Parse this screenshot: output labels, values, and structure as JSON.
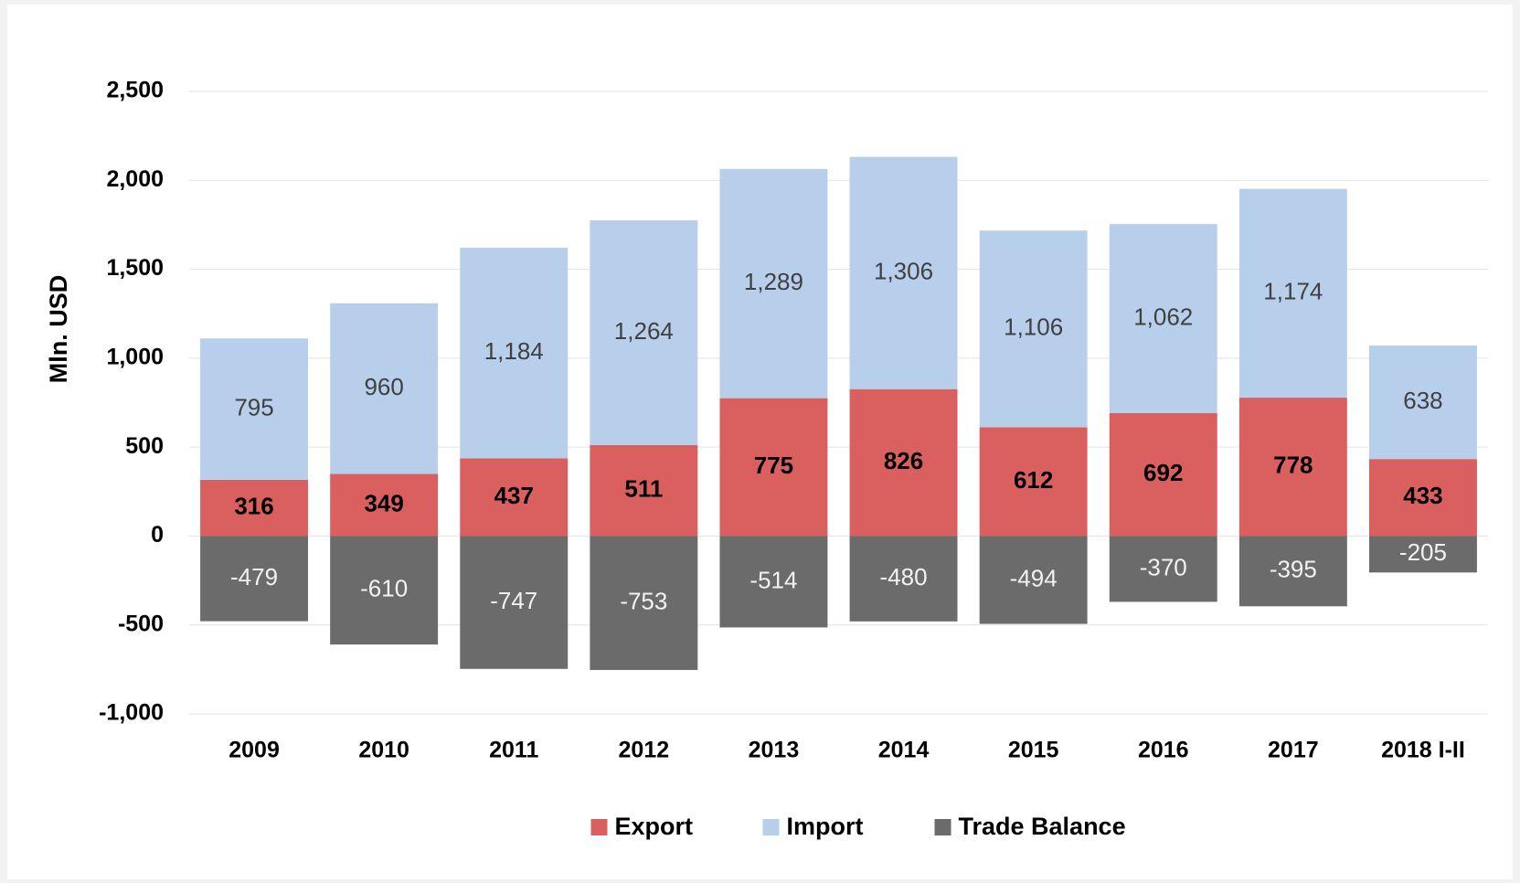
{
  "chart_data": {
    "type": "stacked_bar",
    "y_axis_label": "Mln. USD",
    "categories": [
      "2009",
      "2010",
      "2011",
      "2012",
      "2013",
      "2014",
      "2015",
      "2016",
      "2017",
      "2018 I-II"
    ],
    "series": [
      {
        "name": "Export",
        "color": "#d9605f",
        "values": [
          316,
          349,
          437,
          511,
          775,
          826,
          612,
          692,
          778,
          433
        ]
      },
      {
        "name": "Import",
        "color": "#b8cfeb",
        "values": [
          795,
          960,
          1184,
          1264,
          1289,
          1306,
          1106,
          1062,
          1174,
          638
        ],
        "value_labels": [
          "795",
          "960",
          "1,184",
          "1,264",
          "1,289",
          "1,306",
          "1,106",
          "1,062",
          "1,174",
          "638"
        ]
      },
      {
        "name": "Trade Balance",
        "color": "#6b6b6b",
        "values": [
          -479,
          -610,
          -747,
          -753,
          -514,
          -480,
          -494,
          -370,
          -395,
          -205
        ]
      }
    ],
    "ylim": [
      -1000,
      2500
    ],
    "yticks": [
      {
        "value": -1000,
        "label": "-1,000"
      },
      -500,
      0,
      500,
      {
        "value": 1000,
        "label": "1,000"
      },
      {
        "value": 1500,
        "label": "1,500"
      },
      {
        "value": 2000,
        "label": "2,000"
      },
      {
        "value": 2500,
        "label": "2,500"
      }
    ],
    "grid": true,
    "legend": "bottom"
  }
}
